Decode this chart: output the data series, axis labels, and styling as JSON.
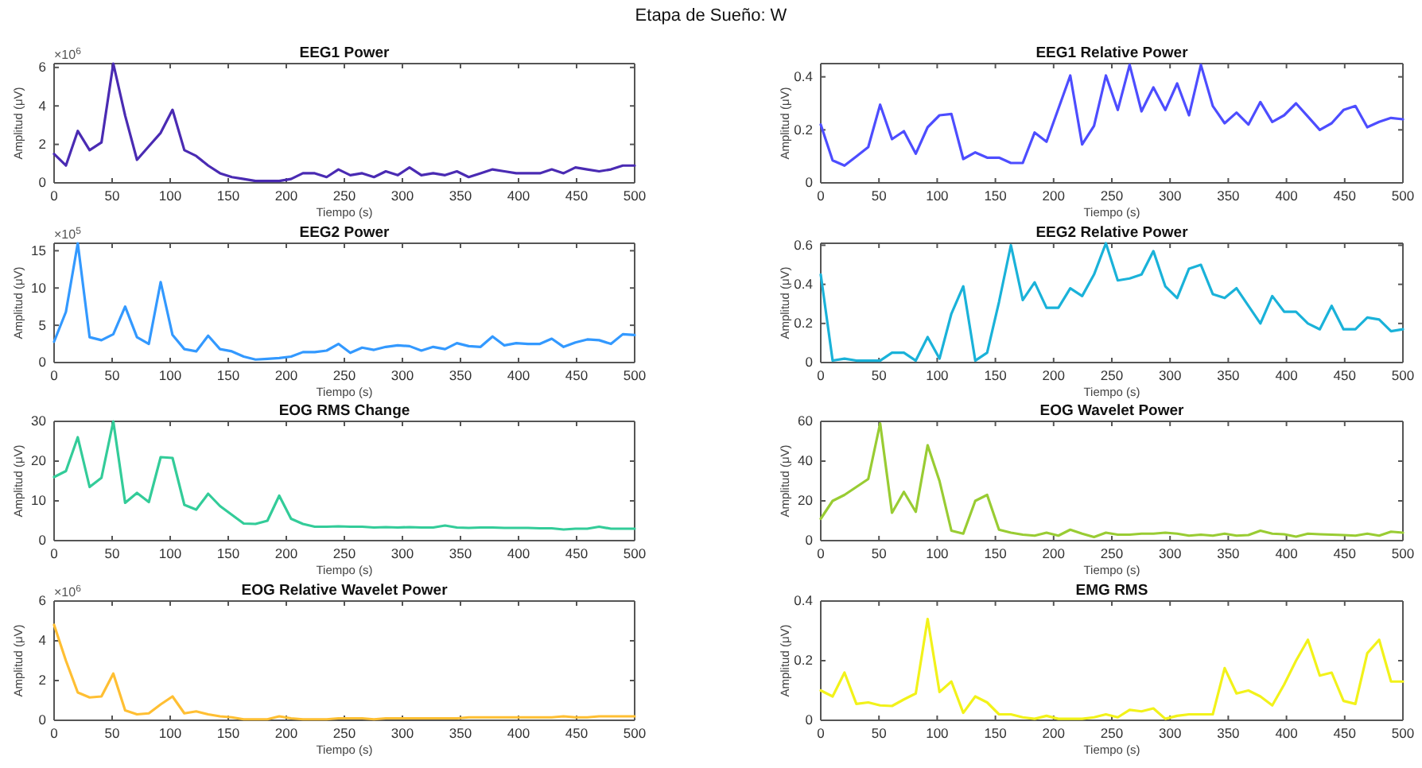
{
  "chart_data": [
    {
      "type": "line",
      "title": "EEG1 Power",
      "xlabel": "Tiempo (s)",
      "ylabel": "Amplitud (μV)",
      "annotations": [
        "Etapa de Sueño: W",
        "×10$^{6}$"
      ],
      "color": "#4a2bb3",
      "x": [
        0,
        10.2,
        20.4,
        30.6,
        40.8,
        51,
        61.2,
        71.4,
        81.6,
        91.8,
        102,
        112.2,
        122.4,
        132.7,
        142.9,
        153.1,
        163.3,
        173.5,
        183.7,
        193.9,
        204.1,
        214.3,
        224.5,
        234.7,
        244.9,
        255.1,
        265.3,
        275.5,
        285.7,
        295.9,
        306.1,
        316.3,
        326.5,
        336.7,
        346.9,
        357.1,
        367.3,
        377.6,
        387.8,
        398,
        408.2,
        418.4,
        428.6,
        438.8,
        449,
        459.2,
        469.4,
        479.6,
        489.8,
        500
      ],
      "values": [
        1.5,
        0.9,
        2.7,
        1.7,
        2.1,
        6.2,
        3.5,
        1.2,
        1.9,
        2.6,
        3.8,
        1.7,
        1.4,
        0.9,
        0.5,
        0.3,
        0.2,
        0.1,
        0.1,
        0.1,
        0.2,
        0.5,
        0.5,
        0.3,
        0.7,
        0.4,
        0.5,
        0.3,
        0.6,
        0.4,
        0.8,
        0.4,
        0.5,
        0.4,
        0.6,
        0.3,
        0.5,
        0.7,
        0.6,
        0.5,
        0.5,
        0.5,
        0.7,
        0.5,
        0.8,
        0.7,
        0.6,
        0.7,
        0.9,
        0.9
      ],
      "xlim": [
        0,
        500
      ],
      "xticks": [
        0,
        50,
        100,
        150,
        200,
        250,
        300,
        350,
        400,
        450,
        500
      ],
      "ylim": [
        0,
        6.2
      ],
      "yticks": [
        0,
        2,
        4,
        6
      ]
    },
    {
      "type": "line",
      "title": "EEG1 Relative Power",
      "xlabel": "Tiempo (s)",
      "ylabel": "Amplitud (μV)",
      "color": "#4d4dff",
      "x": [
        0,
        10.2,
        20.4,
        30.6,
        40.8,
        51,
        61.2,
        71.4,
        81.6,
        91.8,
        102,
        112.2,
        122.4,
        132.7,
        142.9,
        153.1,
        163.3,
        173.5,
        183.7,
        193.9,
        204.1,
        214.3,
        224.5,
        234.7,
        244.9,
        255.1,
        265.3,
        275.5,
        285.7,
        295.9,
        306.1,
        316.3,
        326.5,
        336.7,
        346.9,
        357.1,
        367.3,
        377.6,
        387.8,
        398,
        408.2,
        418.4,
        428.6,
        438.8,
        449,
        459.2,
        469.4,
        479.6,
        489.8,
        500
      ],
      "values": [
        0.22,
        0.085,
        0.065,
        0.1,
        0.135,
        0.295,
        0.165,
        0.195,
        0.11,
        0.21,
        0.255,
        0.26,
        0.09,
        0.115,
        0.095,
        0.095,
        0.075,
        0.075,
        0.19,
        0.155,
        0.28,
        0.405,
        0.145,
        0.215,
        0.405,
        0.275,
        0.445,
        0.27,
        0.36,
        0.275,
        0.375,
        0.255,
        0.445,
        0.29,
        0.225,
        0.265,
        0.22,
        0.305,
        0.23,
        0.255,
        0.3,
        0.25,
        0.2,
        0.225,
        0.275,
        0.29,
        0.21,
        0.23,
        0.245,
        0.24
      ],
      "xlim": [
        0,
        500
      ],
      "xticks": [
        0,
        50,
        100,
        150,
        200,
        250,
        300,
        350,
        400,
        450,
        500
      ],
      "ylim": [
        0,
        0.45
      ],
      "yticks": [
        0,
        0.2,
        0.4
      ]
    },
    {
      "type": "line",
      "title": "EEG2 Power",
      "xlabel": "Tiempo (s)",
      "ylabel": "Amplitud (μV)",
      "annotations": [
        "×10$^{5}$"
      ],
      "color": "#3399ff",
      "x": [
        0,
        10.2,
        20.4,
        30.6,
        40.8,
        51,
        61.2,
        71.4,
        81.6,
        91.8,
        102,
        112.2,
        122.4,
        132.7,
        142.9,
        153.1,
        163.3,
        173.5,
        183.7,
        193.9,
        204.1,
        214.3,
        224.5,
        234.7,
        244.9,
        255.1,
        265.3,
        275.5,
        285.7,
        295.9,
        306.1,
        316.3,
        326.5,
        336.7,
        346.9,
        357.1,
        367.3,
        377.6,
        387.8,
        398,
        408.2,
        418.4,
        428.6,
        438.8,
        449,
        459.2,
        469.4,
        479.6,
        489.8,
        500
      ],
      "values": [
        2.8,
        6.8,
        16,
        3.4,
        3,
        3.8,
        7.5,
        3.4,
        2.5,
        10.8,
        3.7,
        1.8,
        1.5,
        3.6,
        1.8,
        1.5,
        0.8,
        0.4,
        0.5,
        0.6,
        0.8,
        1.4,
        1.4,
        1.6,
        2.5,
        1.3,
        2,
        1.7,
        2.1,
        2.3,
        2.2,
        1.6,
        2.1,
        1.8,
        2.6,
        2.2,
        2.1,
        3.5,
        2.3,
        2.6,
        2.5,
        2.5,
        3.2,
        2.1,
        2.7,
        3.1,
        3,
        2.5,
        3.8,
        3.7
      ],
      "xlim": [
        0,
        500
      ],
      "xticks": [
        0,
        50,
        100,
        150,
        200,
        250,
        300,
        350,
        400,
        450,
        500
      ],
      "ylim": [
        0,
        16
      ],
      "yticks": [
        0,
        5,
        10,
        15
      ]
    },
    {
      "type": "line",
      "title": "EEG2 Relative Power",
      "xlabel": "Tiempo (s)",
      "ylabel": "Amplitud (μV)",
      "color": "#1ab2d9",
      "x": [
        0,
        10.2,
        20.4,
        30.6,
        40.8,
        51,
        61.2,
        71.4,
        81.6,
        91.8,
        102,
        112.2,
        122.4,
        132.7,
        142.9,
        153.1,
        163.3,
        173.5,
        183.7,
        193.9,
        204.1,
        214.3,
        224.5,
        234.7,
        244.9,
        255.1,
        265.3,
        275.5,
        285.7,
        295.9,
        306.1,
        316.3,
        326.5,
        336.7,
        346.9,
        357.1,
        367.3,
        377.6,
        387.8,
        398,
        408.2,
        418.4,
        428.6,
        438.8,
        449,
        459.2,
        469.4,
        479.6,
        489.8,
        500
      ],
      "values": [
        0.45,
        0.01,
        0.02,
        0.01,
        0.01,
        0.01,
        0.05,
        0.05,
        0.01,
        0.13,
        0.02,
        0.25,
        0.39,
        0.01,
        0.05,
        0.31,
        0.6,
        0.32,
        0.41,
        0.28,
        0.28,
        0.38,
        0.34,
        0.45,
        0.61,
        0.42,
        0.43,
        0.45,
        0.57,
        0.39,
        0.33,
        0.48,
        0.5,
        0.35,
        0.33,
        0.38,
        0.29,
        0.2,
        0.34,
        0.26,
        0.26,
        0.2,
        0.17,
        0.29,
        0.17,
        0.17,
        0.23,
        0.22,
        0.16,
        0.17
      ],
      "xlim": [
        0,
        500
      ],
      "xticks": [
        0,
        50,
        100,
        150,
        200,
        250,
        300,
        350,
        400,
        450,
        500
      ],
      "ylim": [
        0,
        0.61
      ],
      "yticks": [
        0,
        0.2,
        0.4,
        0.6
      ]
    },
    {
      "type": "line",
      "title": "EOG RMS Change",
      "xlabel": "Tiempo (s)",
      "ylabel": "Amplitud (μV)",
      "color": "#33cc99",
      "x": [
        0,
        10.2,
        20.4,
        30.6,
        40.8,
        51,
        61.2,
        71.4,
        81.6,
        91.8,
        102,
        112.2,
        122.4,
        132.7,
        142.9,
        153.1,
        163.3,
        173.5,
        183.7,
        193.9,
        204.1,
        214.3,
        224.5,
        234.7,
        244.9,
        255.1,
        265.3,
        275.5,
        285.7,
        295.9,
        306.1,
        316.3,
        326.5,
        336.7,
        346.9,
        357.1,
        367.3,
        377.6,
        387.8,
        398,
        408.2,
        418.4,
        428.6,
        438.8,
        449,
        459.2,
        469.4,
        479.6,
        489.8,
        500
      ],
      "values": [
        16,
        17.5,
        26,
        13.5,
        15.8,
        30,
        9.5,
        12,
        9.7,
        21,
        20.8,
        9,
        7.8,
        11.8,
        8.7,
        6.5,
        4.3,
        4.2,
        5,
        11.3,
        5.5,
        4.2,
        3.5,
        3.5,
        3.6,
        3.5,
        3.5,
        3.3,
        3.4,
        3.3,
        3.4,
        3.3,
        3.3,
        3.8,
        3.3,
        3.2,
        3.3,
        3.3,
        3.2,
        3.2,
        3.2,
        3.1,
        3.1,
        2.8,
        3,
        3,
        3.5,
        3,
        3,
        3
      ],
      "xlim": [
        0,
        500
      ],
      "xticks": [
        0,
        50,
        100,
        150,
        200,
        250,
        300,
        350,
        400,
        450,
        500
      ],
      "ylim": [
        0,
        30
      ],
      "yticks": [
        0,
        10,
        20,
        30
      ]
    },
    {
      "type": "line",
      "title": "EOG Wavelet Power",
      "xlabel": "Tiempo (s)",
      "ylabel": "Amplitud (μV)",
      "color": "#99cc33",
      "x": [
        0,
        10.2,
        20.4,
        30.6,
        40.8,
        51,
        61.2,
        71.4,
        81.6,
        91.8,
        102,
        112.2,
        122.4,
        132.7,
        142.9,
        153.1,
        163.3,
        173.5,
        183.7,
        193.9,
        204.1,
        214.3,
        224.5,
        234.7,
        244.9,
        255.1,
        265.3,
        275.5,
        285.7,
        295.9,
        306.1,
        316.3,
        326.5,
        336.7,
        346.9,
        357.1,
        367.3,
        377.6,
        387.8,
        398,
        408.2,
        418.4,
        428.6,
        438.8,
        449,
        459.2,
        469.4,
        479.6,
        489.8,
        500
      ],
      "values": [
        11,
        20,
        23,
        27,
        31,
        59,
        14,
        24.5,
        14.5,
        48,
        30,
        5,
        3.5,
        20,
        23,
        5.5,
        4,
        3,
        2.5,
        4,
        2.5,
        5.5,
        3.5,
        1.8,
        4,
        3,
        3,
        3.5,
        3.5,
        4,
        3.5,
        2.5,
        3,
        2.5,
        3.5,
        2.5,
        2.8,
        5,
        3.5,
        3.2,
        2,
        3.5,
        3.2,
        3,
        2.8,
        2.5,
        3.5,
        2.5,
        4.5,
        4
      ],
      "xlim": [
        0,
        500
      ],
      "xticks": [
        0,
        50,
        100,
        150,
        200,
        250,
        300,
        350,
        400,
        450,
        500
      ],
      "ylim": [
        0,
        60
      ],
      "yticks": [
        0,
        20,
        40,
        60
      ]
    },
    {
      "type": "line",
      "title": "EOG Relative Wavelet Power",
      "xlabel": "Tiempo (s)",
      "ylabel": "Amplitud (μV)",
      "annotations": [
        "×10$^{6}$"
      ],
      "color": "#ffbf33",
      "x": [
        0,
        10.2,
        20.4,
        30.6,
        40.8,
        51,
        61.2,
        71.4,
        81.6,
        91.8,
        102,
        112.2,
        122.4,
        132.7,
        142.9,
        153.1,
        163.3,
        173.5,
        183.7,
        193.9,
        204.1,
        214.3,
        224.5,
        234.7,
        244.9,
        255.1,
        265.3,
        275.5,
        285.7,
        295.9,
        306.1,
        316.3,
        326.5,
        336.7,
        346.9,
        357.1,
        367.3,
        377.6,
        387.8,
        398,
        408.2,
        418.4,
        428.6,
        438.8,
        449,
        459.2,
        469.4,
        479.6,
        489.8,
        500
      ],
      "values": [
        4.8,
        3,
        1.4,
        1.15,
        1.2,
        2.35,
        0.5,
        0.3,
        0.35,
        0.8,
        1.2,
        0.35,
        0.45,
        0.3,
        0.2,
        0.15,
        0.05,
        0.05,
        0.05,
        0.2,
        0.1,
        0.05,
        0.05,
        0.05,
        0.1,
        0.1,
        0.1,
        0.05,
        0.1,
        0.1,
        0.1,
        0.1,
        0.1,
        0.1,
        0.1,
        0.15,
        0.15,
        0.15,
        0.15,
        0.15,
        0.15,
        0.15,
        0.15,
        0.2,
        0.15,
        0.15,
        0.2,
        0.2,
        0.2,
        0.2
      ],
      "xlim": [
        0,
        500
      ],
      "xticks": [
        0,
        50,
        100,
        150,
        200,
        250,
        300,
        350,
        400,
        450,
        500
      ],
      "ylim": [
        0,
        6
      ],
      "yticks": [
        0,
        2,
        4,
        6
      ]
    },
    {
      "type": "line",
      "title": "EMG RMS",
      "xlabel": "Tiempo (s)",
      "ylabel": "Amplitud (μV)",
      "color": "#f2f21a",
      "x": [
        0,
        10.2,
        20.4,
        30.6,
        40.8,
        51,
        61.2,
        71.4,
        81.6,
        91.8,
        102,
        112.2,
        122.4,
        132.7,
        142.9,
        153.1,
        163.3,
        173.5,
        183.7,
        193.9,
        204.1,
        214.3,
        224.5,
        234.7,
        244.9,
        255.1,
        265.3,
        275.5,
        285.7,
        295.9,
        306.1,
        316.3,
        326.5,
        336.7,
        346.9,
        357.1,
        367.3,
        377.6,
        387.8,
        398,
        408.2,
        418.4,
        428.6,
        438.8,
        449,
        459.2,
        469.4,
        479.6,
        489.8,
        500
      ],
      "values": [
        0.1,
        0.08,
        0.16,
        0.055,
        0.06,
        0.05,
        0.048,
        0.07,
        0.09,
        0.34,
        0.095,
        0.13,
        0.025,
        0.08,
        0.06,
        0.02,
        0.02,
        0.01,
        0.005,
        0.015,
        0.005,
        0.005,
        0.005,
        0.01,
        0.02,
        0.01,
        0.035,
        0.03,
        0.04,
        0.005,
        0.015,
        0.02,
        0.02,
        0.02,
        0.175,
        0.09,
        0.1,
        0.08,
        0.05,
        0.12,
        0.2,
        0.27,
        0.15,
        0.16,
        0.065,
        0.055,
        0.225,
        0.27,
        0.13,
        0.13
      ],
      "xlim": [
        0,
        500
      ],
      "xticks": [
        0,
        50,
        100,
        150,
        200,
        250,
        300,
        350,
        400,
        450,
        500
      ],
      "ylim": [
        0,
        0.4
      ],
      "yticks": [
        0,
        0.2,
        0.4
      ]
    }
  ]
}
